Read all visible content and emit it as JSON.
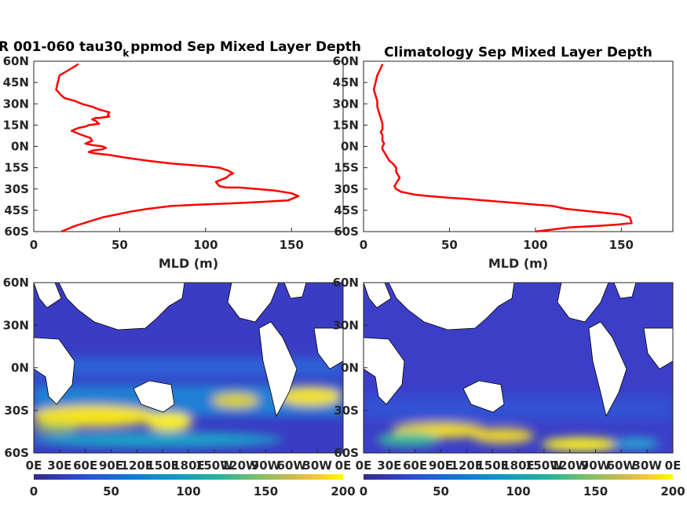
{
  "chart_data": [
    {
      "type": "line",
      "title": "R 001-060 tau30_k ppmod Sep Mixed Layer Depth",
      "title_parts": {
        "pre": "R 001-060 tau30",
        "sub": "k",
        "post": "ppmod Sep Mixed Layer Depth"
      },
      "xlabel": "MLD (m)",
      "xlim": [
        0,
        180
      ],
      "xticks": [
        "0",
        "50",
        "100",
        "150"
      ],
      "ylim": [
        -60,
        60
      ],
      "yticks": [
        "60N",
        "45N",
        "30N",
        "15N",
        "0N",
        "15S",
        "30S",
        "45S",
        "60S"
      ],
      "color": "#ff0000",
      "x": [
        26,
        22,
        15,
        14,
        13,
        16,
        18,
        24,
        28,
        34,
        36,
        38,
        44,
        43,
        44,
        38,
        36,
        34,
        36,
        37,
        38,
        32,
        30,
        26,
        24,
        22,
        24,
        28,
        33,
        34,
        30,
        34,
        40,
        42,
        40,
        34,
        32,
        36,
        44,
        54,
        66,
        80,
        90,
        100,
        108,
        113,
        116,
        114,
        112,
        106,
        108,
        112,
        120,
        130,
        140,
        150,
        154,
        148,
        134,
        118,
        96,
        80,
        66,
        56,
        48,
        40,
        32,
        24,
        20,
        16
      ],
      "y": [
        58,
        55,
        50,
        45,
        40,
        36,
        34,
        32,
        30,
        28,
        27,
        26,
        24,
        22,
        21,
        20,
        20,
        19,
        18,
        17,
        16,
        15,
        14,
        13,
        12,
        11,
        10,
        8,
        6,
        4,
        2,
        1,
        0,
        -1,
        -2,
        -3,
        -4,
        -5,
        -6,
        -8,
        -10,
        -12,
        -13,
        -14,
        -15,
        -17,
        -19,
        -20,
        -22,
        -25,
        -28,
        -29,
        -29,
        -30,
        -31,
        -33,
        -35,
        -38,
        -39,
        -40,
        -41,
        -42,
        -44,
        -46,
        -48,
        -50,
        -53,
        -56,
        -58,
        -60
      ]
    },
    {
      "type": "line",
      "title": "Climatology Sep Mixed Layer Depth",
      "xlabel": "MLD (m)",
      "xlim": [
        0,
        180
      ],
      "xticks": [
        "0",
        "50",
        "100",
        "150"
      ],
      "ylim": [
        -60,
        60
      ],
      "yticks": [
        "60N",
        "45N",
        "30N",
        "15N",
        "0N",
        "15S",
        "30S",
        "45S",
        "60S"
      ],
      "color": "#ff0000",
      "x": [
        11,
        10,
        8,
        7,
        6,
        7,
        8,
        8,
        9,
        10,
        11,
        11,
        10,
        11,
        11,
        12,
        11,
        11,
        12,
        13,
        14,
        15,
        17,
        19,
        19,
        21,
        20,
        19,
        18,
        19,
        22,
        26,
        30,
        38,
        48,
        60,
        70,
        80,
        90,
        100,
        110,
        118,
        126,
        134,
        142,
        150,
        155,
        156,
        148,
        136,
        120,
        100
      ],
      "y": [
        58,
        55,
        50,
        45,
        40,
        36,
        32,
        28,
        24,
        20,
        16,
        12,
        10,
        8,
        4,
        2,
        0,
        -2,
        -4,
        -6,
        -8,
        -10,
        -12,
        -15,
        -18,
        -22,
        -24,
        -26,
        -28,
        -30,
        -32,
        -33,
        -34,
        -35,
        -36,
        -37,
        -38,
        -39,
        -40,
        -41,
        -42,
        -44,
        -45,
        -46,
        -47,
        -48,
        -50,
        -54,
        -55,
        -56,
        -57,
        -60
      ]
    },
    {
      "type": "heatmap",
      "xticks": [
        "0E",
        "30E",
        "60E",
        "90E",
        "120E",
        "150E",
        "180E",
        "150W",
        "120W",
        "90W",
        "60W",
        "30W",
        "0E"
      ],
      "yticks": [
        "60N",
        "30N",
        "0N",
        "30S",
        "60S"
      ],
      "xlim": [
        0,
        360
      ],
      "ylim": [
        -60,
        60
      ],
      "colorbar_ticks": [
        "0",
        "50",
        "100",
        "150",
        "200"
      ],
      "clim": [
        0,
        200
      ],
      "colormap": "parula",
      "colors": {
        "low": "#352a87",
        "mid": "#0d99c3",
        "high": "#f9fb0e",
        "land": "#ffffff"
      }
    },
    {
      "type": "heatmap",
      "xticks": [
        "0E",
        "30E",
        "60E",
        "90E",
        "120E",
        "150E",
        "180E",
        "150W",
        "120W",
        "90W",
        "60W",
        "30W",
        "0E"
      ],
      "yticks": [
        "60N",
        "30N",
        "0N",
        "30S",
        "60S"
      ],
      "xlim": [
        0,
        360
      ],
      "ylim": [
        -60,
        60
      ],
      "colorbar_ticks": [
        "0",
        "50",
        "100",
        "150",
        "200"
      ],
      "clim": [
        0,
        200
      ],
      "colormap": "parula",
      "colors": {
        "low": "#352a87",
        "mid": "#0d99c3",
        "high": "#f9fb0e",
        "land": "#ffffff"
      }
    }
  ]
}
